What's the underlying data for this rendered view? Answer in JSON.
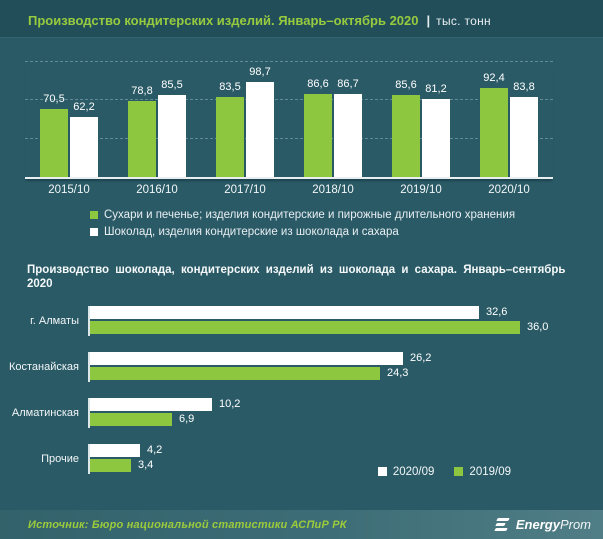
{
  "header": {
    "title": "Производство кондитерских изделий. Январь–октябрь 2020",
    "separator": "|",
    "unit": "тыс. тонн"
  },
  "chart2_title": "Производство  шоколада,  кондитерских  изделий  из шоколада  и сахара.  Январь–сентябрь  2020",
  "chart_data": [
    {
      "type": "bar",
      "title": "Производство кондитерских изделий. Январь–октябрь 2020, тыс. тонн",
      "categories": [
        "2015/10",
        "2016/10",
        "2017/10",
        "2018/10",
        "2019/10",
        "2020/10"
      ],
      "series": [
        {
          "name": "Сухари и печенье; изделия кондитерские и пирожные длительного хранения",
          "color": "#8DC63F",
          "values": [
            70.5,
            78.8,
            83.5,
            86.6,
            85.6,
            92.4
          ],
          "labels": [
            "70,5",
            "78,8",
            "83,5",
            "86,6",
            "85,6",
            "92,4"
          ]
        },
        {
          "name": "Шоколад, изделия кондитерские из шоколада и сахара",
          "color": "#FFFFFF",
          "values": [
            62.2,
            85.5,
            98.7,
            86.7,
            81.2,
            83.8
          ],
          "labels": [
            "62,2",
            "85,5",
            "98,7",
            "86,7",
            "81,2",
            "83,8"
          ]
        }
      ],
      "ylim": [
        0,
        120
      ],
      "gridlines": [
        40,
        80,
        120
      ],
      "grid": "dashed-horizontal",
      "legend_position": "bottom-left"
    },
    {
      "type": "bar",
      "orientation": "horizontal",
      "title": "Производство шоколада, кондитерских изделий из шоколада и сахара. Январь–сентябрь 2020",
      "categories": [
        "г. Алматы",
        "Костанайская",
        "Алматинская",
        "Прочие"
      ],
      "series": [
        {
          "name": "2020/09",
          "color": "#FFFFFF",
          "values": [
            32.6,
            26.2,
            10.2,
            4.2
          ],
          "labels": [
            "32,6",
            "26,2",
            "10,2",
            "4,2"
          ]
        },
        {
          "name": "2019/09",
          "color": "#8DC63F",
          "values": [
            36.0,
            24.3,
            6.9,
            3.4
          ],
          "labels": [
            "36,0",
            "24,3",
            "6,9",
            "3,4"
          ]
        }
      ],
      "xlim": [
        0,
        38
      ],
      "grid": false,
      "legend_position": "bottom-right"
    }
  ],
  "footer": {
    "source": "Источник: Бюро национальной  статистики АСПиР РК",
    "logo_bold": "Energy",
    "logo_regular": "Prom"
  },
  "colors": {
    "green": "#8DC63F",
    "white": "#FFFFFF",
    "title_green": "#97CB3F",
    "background": "#2A5A66",
    "header_background": "#224E59"
  }
}
